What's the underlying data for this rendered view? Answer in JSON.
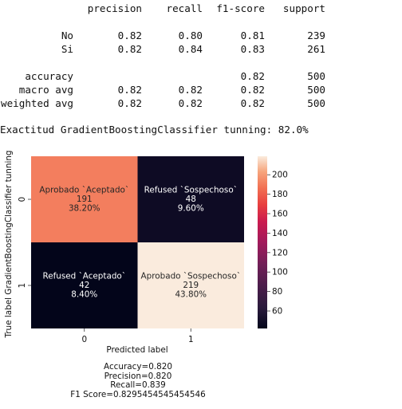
{
  "report": {
    "headers": [
      "precision",
      "recall",
      "f1-score",
      "support"
    ],
    "rows": [
      {
        "label": "No",
        "precision": "0.82",
        "recall": "0.80",
        "f1": "0.81",
        "support": "239"
      },
      {
        "label": "Si",
        "precision": "0.82",
        "recall": "0.84",
        "f1": "0.83",
        "support": "261"
      }
    ],
    "accuracy": {
      "label": "accuracy",
      "f1": "0.82",
      "support": "500"
    },
    "averages": [
      {
        "label": "macro avg",
        "precision": "0.82",
        "recall": "0.82",
        "f1": "0.82",
        "support": "500"
      },
      {
        "label": "weighted avg",
        "precision": "0.82",
        "recall": "0.82",
        "f1": "0.82",
        "support": "500"
      }
    ]
  },
  "accuracy_line": "Exactitud GradientBoostingClassifier tunning: 82.0%",
  "chart_data": {
    "type": "heatmap",
    "title": "",
    "xlabel": "Predicted label",
    "ylabel": "True label GradientBoostingClassifier tunning",
    "x_categories": [
      "0",
      "1"
    ],
    "y_categories": [
      "0",
      "1"
    ],
    "cells": [
      [
        {
          "name": "Aprobado `Aceptado`",
          "count": 191,
          "percent": "38.20%"
        },
        {
          "name": "Refused `Sospechoso`",
          "count": 48,
          "percent": "9.60%"
        }
      ],
      [
        {
          "name": "Refused `Aceptado`",
          "count": 42,
          "percent": "8.40%"
        },
        {
          "name": "Aprobado `Sospechoso`",
          "count": 219,
          "percent": "43.80%"
        }
      ]
    ],
    "colorbar": {
      "vmin": 42,
      "vmax": 219,
      "ticks": [
        60,
        80,
        100,
        120,
        140,
        160,
        180,
        200
      ],
      "colormap": "rocket"
    }
  },
  "stats": [
    "Accuracy=0.820",
    "Precision=0.820",
    "Recall=0.839",
    "F1 Score=0.8295454545454546"
  ]
}
